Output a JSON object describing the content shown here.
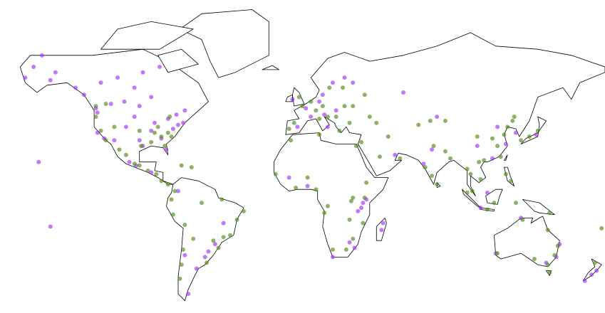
{
  "chart_data": {
    "type": "scatter",
    "series": [
      {
        "color": "#a033f2",
        "x": [
          -150,
          -147,
          -160,
          -135,
          -155,
          -165,
          -123,
          -114,
          -106,
          -97,
          -80,
          -75,
          -100,
          -120,
          -130,
          -90,
          -110,
          -70,
          -85,
          -95,
          -122,
          -118,
          -112,
          -105,
          -97,
          -90,
          -84,
          -77,
          -74,
          -71,
          -88,
          -81,
          -95,
          -122,
          -100,
          -99,
          -90,
          -103,
          -58,
          -56,
          -52,
          -70,
          -63,
          -74,
          -47,
          -68,
          2,
          10,
          -3,
          13,
          18,
          25,
          30,
          12,
          -6,
          5,
          20,
          15,
          36,
          35,
          38,
          33,
          47,
          48,
          31,
          28,
          18,
          -8,
          3,
          77,
          72,
          121,
          116,
          113,
          104,
          127,
          139,
          106,
          55,
          80,
          60,
          110,
          151,
          145,
          153,
          115,
          175,
          172,
          168,
          130,
          -157,
          -150
        ],
        "values": [
          61,
          64,
          66,
          58,
          70,
          62,
          49,
          51,
          52,
          50,
          44,
          46,
          58,
          60,
          55,
          54,
          62,
          48,
          66,
          64,
          37,
          34,
          33,
          40,
          33,
          38,
          34,
          39,
          41,
          42,
          42,
          28,
          30,
          47,
          45,
          19,
          15,
          21,
          -34,
          -31,
          -27,
          -33,
          -40,
          4,
          -15,
          -52,
          49,
          52,
          40,
          46,
          60,
          62,
          60,
          55,
          53,
          45,
          48,
          40,
          -3,
          -6,
          -1,
          -8,
          -19,
          -15,
          -29,
          -26,
          -34,
          12,
          7,
          28,
          20,
          31,
          40,
          23,
          30,
          37,
          36,
          -6,
          25,
          45,
          56,
          3,
          -34,
          -37,
          -27,
          -32,
          -41,
          -43,
          -46,
          -12,
          21,
          -17
        ]
      },
      {
        "color": "#4e8a11",
        "x": [
          -84,
          -86,
          -80,
          -90,
          -82,
          -78,
          -123,
          -120,
          -117,
          -112,
          -97,
          -96,
          -88,
          -123,
          -117,
          -79,
          -100,
          -97,
          -105,
          -109,
          -92,
          -87,
          -84,
          -80,
          -72,
          -66,
          -76,
          -78,
          -77,
          -70,
          -47,
          -43,
          -39,
          -35,
          -53,
          -50,
          -60,
          -48,
          -72,
          -73,
          -71,
          -65,
          -57,
          0,
          5,
          8,
          12,
          15,
          20,
          -5,
          -8,
          10,
          25,
          30,
          24,
          37,
          -2,
          16,
          28,
          22,
          40,
          44,
          -16,
          -4,
          8,
          3,
          32,
          10,
          -7,
          38,
          37,
          30,
          36,
          28,
          30,
          26,
          18,
          15,
          13,
          29,
          35,
          51,
          46,
          58,
          77,
          80,
          73,
          88,
          78,
          85,
          100,
          105,
          106,
          101,
          121,
          116,
          120,
          118,
          104,
          108,
          113,
          122,
          125,
          126,
          130,
          135,
          140,
          85,
          69,
          76,
          98,
          124,
          114,
          110,
          98,
          127,
          152,
          150,
          146,
          147,
          138,
          116,
          146,
          174,
          178,
          147,
          131
        ],
        "values": [
          35,
          40,
          37,
          32,
          30,
          35,
          45,
          38,
          33,
          40,
          38,
          30,
          37,
          50,
          51,
          45,
          20,
          19,
          25,
          28,
          16,
          14,
          10,
          8,
          19,
          18,
          4,
          -1,
          -10,
          -16,
          -23,
          -22,
          -13,
          -8,
          -25,
          -29,
          -3,
          -1,
          -38,
          -45,
          -30,
          -24,
          -37,
          50,
          52,
          48,
          50,
          45,
          45,
          42,
          39,
          44,
          50,
          50,
          58,
          55,
          54,
          58,
          42,
          38,
          45,
          42,
          14,
          6,
          5,
          12,
          30,
          36,
          33,
          9,
          0,
          0,
          -15,
          -13,
          -24,
          -30,
          -30,
          -5,
          -9,
          -2,
          32,
          35,
          24,
          23,
          13,
          8,
          18,
          23,
          30,
          27,
          14,
          21,
          11,
          4,
          14,
          30,
          36,
          24,
          35,
          22,
          34,
          40,
          43,
          45,
          33,
          35,
          38,
          43,
          41,
          43,
          17,
          10,
          -3,
          -7,
          3,
          -3,
          -28,
          -33,
          -38,
          -42,
          -35,
          -32,
          -19,
          -37,
          -18,
          -9,
          -13
        ]
      }
    ]
  }
}
